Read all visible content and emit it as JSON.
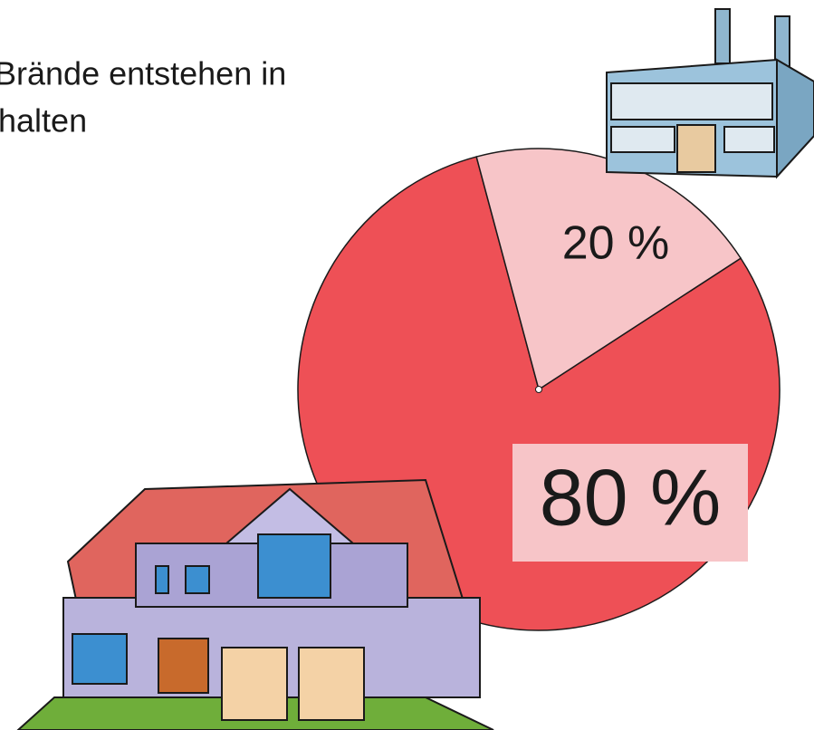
{
  "chart_data": {
    "type": "pie",
    "title_lines": [
      "Brände entstehen in",
      "halten"
    ],
    "values": [
      20,
      80
    ],
    "value_labels": [
      "20 %",
      "80 %"
    ],
    "colors": [
      "#f7c5c8",
      "#ee5056"
    ]
  }
}
